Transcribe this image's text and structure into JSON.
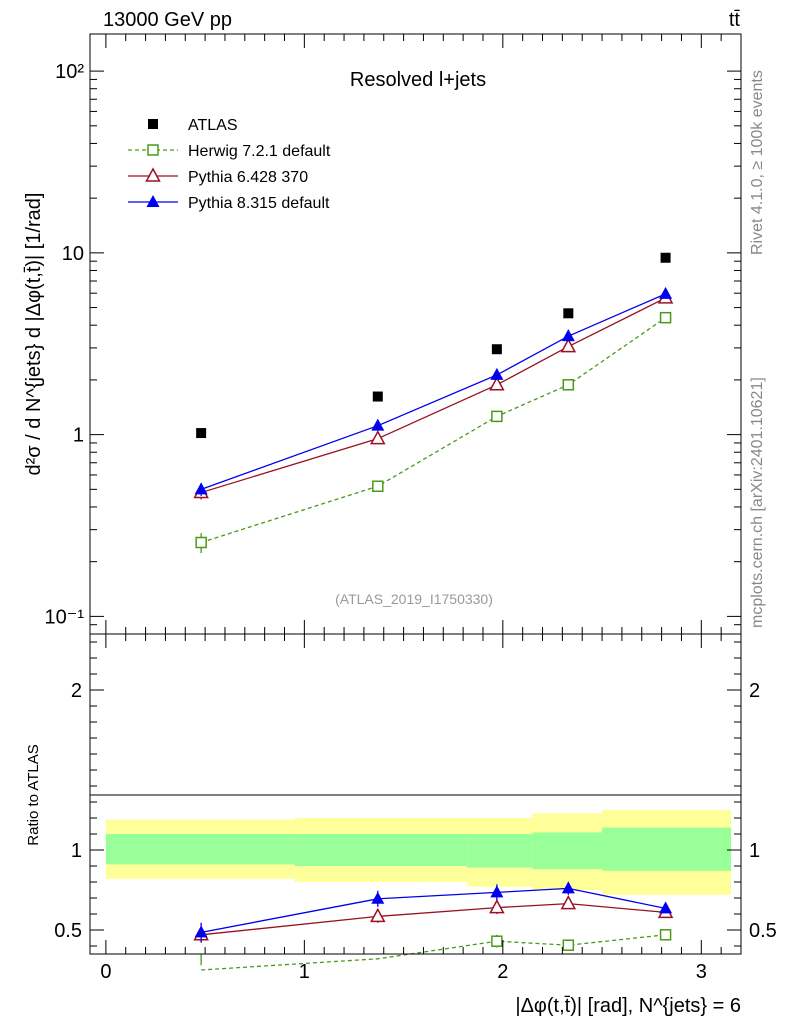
{
  "header": {
    "energy_label": "13000 GeV pp",
    "process_label": "tt̄"
  },
  "side_labels": {
    "rivet": "Rivet 4.1.0, ≥ 100k events",
    "source": "mcplots.cern.ch [arXiv:2401.10621]"
  },
  "chart_data": [
    {
      "type": "line",
      "panel": "main",
      "title": "Resolved l+jets",
      "analysis_label": "(ATLAS_2019_I1750330)",
      "ylabel": "d²σ / d N^{jets} d |Δφ(t,t̄)| [1/rad]",
      "yscale": "log",
      "ylim": [
        0.08,
        160
      ],
      "xlim": [
        -0.08,
        3.2
      ],
      "y_ticks": [
        {
          "v": 0.1,
          "label": "10⁻¹"
        },
        {
          "v": 1,
          "label": "1"
        },
        {
          "v": 10,
          "label": "10"
        },
        {
          "v": 100,
          "label": "10²"
        }
      ],
      "x": [
        0.48,
        1.37,
        1.97,
        2.33,
        2.82
      ],
      "series": [
        {
          "name": "ATLAS",
          "color": "#000000",
          "marker": "square",
          "line": "none",
          "values": [
            1.02,
            1.62,
            2.95,
            4.65,
            9.4
          ],
          "errors": [
            0,
            0,
            0,
            0,
            0
          ]
        },
        {
          "name": "Herwig 7.2.1 default",
          "color": "#4a9a1a",
          "marker": "open-square",
          "line": "dashed",
          "values": [
            0.255,
            0.52,
            1.26,
            1.88,
            4.4
          ],
          "errors": [
            0.032,
            0.035,
            0.09,
            0.11,
            0.18
          ]
        },
        {
          "name": "Pythia 6.428 370",
          "color": "#9a1022",
          "marker": "open-triangle",
          "line": "solid",
          "values": [
            0.48,
            0.95,
            1.88,
            3.05,
            5.65
          ],
          "errors": [
            0.04,
            0.06,
            0.12,
            0.18,
            0.3
          ]
        },
        {
          "name": "Pythia 8.315 default",
          "color": "#0000ee",
          "marker": "filled-triangle",
          "line": "solid",
          "values": [
            0.5,
            1.12,
            2.13,
            3.48,
            5.95
          ],
          "errors": [
            0.04,
            0.07,
            0.12,
            0.2,
            0.3
          ]
        }
      ]
    },
    {
      "type": "line",
      "panel": "ratio",
      "ylabel": "Ratio to ATLAS",
      "xlabel": "|Δφ(t,t̄)| [rad], N^{jets} = 6",
      "ylim": [
        0.35,
        2.35
      ],
      "xlim": [
        -0.08,
        3.2
      ],
      "y_ticks": [
        {
          "v": 0.5,
          "label": "0.5"
        },
        {
          "v": 1,
          "label": "1"
        },
        {
          "v": 2,
          "label": "2"
        }
      ],
      "x_ticks": [
        {
          "v": 0,
          "label": "0"
        },
        {
          "v": 1,
          "label": "1"
        },
        {
          "v": 2,
          "label": "2"
        },
        {
          "v": 3,
          "label": "3"
        }
      ],
      "x": [
        0.48,
        1.37,
        1.97,
        2.33,
        2.82
      ],
      "bands": {
        "bin_edges": [
          0.0,
          0.95,
          1.82,
          2.15,
          2.5,
          3.15
        ],
        "outer": [
          [
            0.82,
            1.19
          ],
          [
            0.8,
            1.2
          ],
          [
            0.77,
            1.2
          ],
          [
            0.75,
            1.23
          ],
          [
            0.72,
            1.25
          ]
        ],
        "inner": [
          [
            0.91,
            1.1
          ],
          [
            0.9,
            1.1
          ],
          [
            0.89,
            1.1
          ],
          [
            0.88,
            1.11
          ],
          [
            0.87,
            1.14
          ]
        ]
      },
      "series": [
        {
          "name": "Herwig 7.2.1 default",
          "color": "#4a9a1a",
          "marker": "open-square",
          "line": "dashed",
          "values": [
            0.25,
            0.32,
            0.43,
            0.405,
            0.47
          ],
          "errors": [
            0.03,
            0.03,
            0.04,
            0.03,
            0.015
          ]
        },
        {
          "name": "Pythia 6.428 370",
          "color": "#9a1022",
          "marker": "open-triangle",
          "line": "solid",
          "values": [
            0.47,
            0.585,
            0.64,
            0.665,
            0.61
          ],
          "errors": [
            0.05,
            0.04,
            0.04,
            0.03,
            0.02
          ]
        },
        {
          "name": "Pythia 8.315 default",
          "color": "#0000ee",
          "marker": "filled-triangle",
          "line": "solid",
          "values": [
            0.485,
            0.695,
            0.735,
            0.76,
            0.635
          ],
          "errors": [
            0.06,
            0.05,
            0.05,
            0.04,
            0.03
          ]
        }
      ]
    }
  ]
}
